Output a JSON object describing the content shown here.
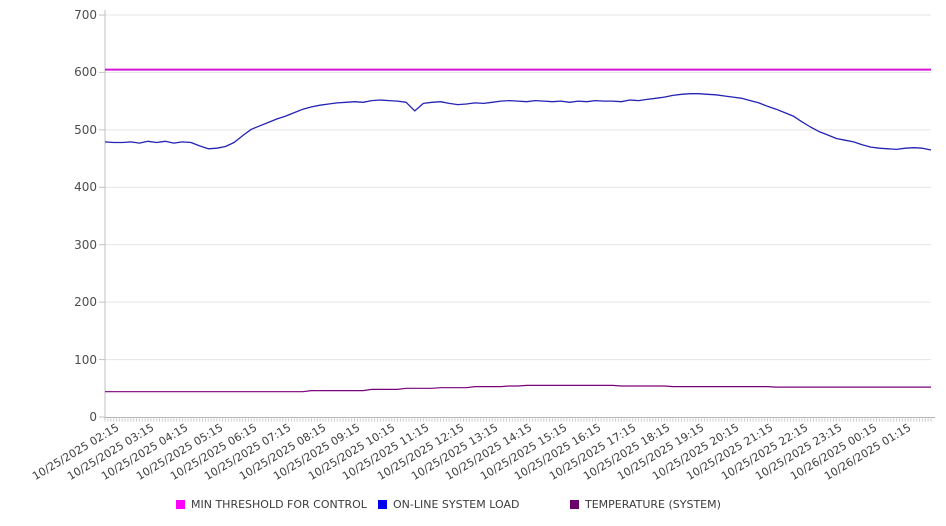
{
  "chart_data": {
    "type": "line",
    "title": "",
    "xlabel": "",
    "ylabel": "",
    "ylim": [
      0,
      700
    ],
    "yticks": [
      0,
      100,
      200,
      300,
      400,
      500,
      600,
      700
    ],
    "grid": "horizontal",
    "legend_position": "bottom",
    "x_tick_labels": [
      "10/25/2025 02:15",
      "10/25/2025 03:15",
      "10/25/2025 04:15",
      "10/25/2025 05:15",
      "10/25/2025 06:15",
      "10/25/2025 07:15",
      "10/25/2025 08:15",
      "10/25/2025 09:15",
      "10/25/2025 10:15",
      "10/25/2025 11:15",
      "10/25/2025 12:15",
      "10/25/2025 13:15",
      "10/25/2025 14:15",
      "10/25/2025 15:15",
      "10/25/2025 16:15",
      "10/25/2025 17:15",
      "10/25/2025 18:15",
      "10/25/2025 19:15",
      "10/25/2025 20:15",
      "10/25/2025 21:15",
      "10/25/2025 22:15",
      "10/25/2025 23:15",
      "10/26/2025 00:15",
      "10/26/2025 01:15"
    ],
    "sample_interval_minutes": 15,
    "minor_tick_interval_minutes": 5,
    "x_span_hours": 24,
    "series": [
      {
        "name": "MIN THRESHOLD FOR CONTROL",
        "swatch_color": "#ff00ff",
        "line_color": "#d414d4",
        "line_width": 2,
        "constant_value": 605
      },
      {
        "name": "ON-LINE SYSTEM LOAD",
        "swatch_color": "#0000f0",
        "line_color": "#2323b4",
        "line_width": 1.3,
        "values": [
          479,
          478,
          478,
          479,
          477,
          480,
          478,
          480,
          477,
          479,
          478,
          472,
          467,
          468,
          471,
          478,
          490,
          501,
          507,
          513,
          519,
          524,
          530,
          536,
          540,
          543,
          545,
          547,
          548,
          549,
          548,
          551,
          552,
          551,
          550,
          548,
          533,
          546,
          548,
          549,
          546,
          544,
          545,
          547,
          546,
          548,
          550,
          551,
          550,
          549,
          551,
          550,
          549,
          550,
          548,
          550,
          549,
          551,
          550,
          550,
          549,
          552,
          551,
          553,
          555,
          557,
          560,
          562,
          563,
          563,
          562,
          561,
          559,
          557,
          555,
          551,
          547,
          541,
          536,
          530,
          524,
          514,
          505,
          497,
          491,
          485,
          482,
          479,
          474,
          470,
          468,
          467,
          466,
          468,
          469,
          468,
          465
        ]
      },
      {
        "name": "TEMPERATURE (SYSTEM)",
        "swatch_color": "#6b006b",
        "line_color": "#7a007a",
        "line_width": 1.2,
        "values": [
          44,
          44,
          44,
          44,
          44,
          44,
          44,
          44,
          44,
          44,
          44,
          44,
          44,
          44,
          44,
          44,
          44,
          44,
          44,
          44,
          44,
          44,
          44,
          44,
          46,
          46,
          46,
          46,
          46,
          46,
          46,
          48,
          48,
          48,
          48,
          50,
          50,
          50,
          50,
          51,
          51,
          51,
          51,
          53,
          53,
          53,
          53,
          54,
          54,
          55,
          55,
          55,
          55,
          55,
          55,
          55,
          55,
          55,
          55,
          55,
          54,
          54,
          54,
          54,
          54,
          54,
          53,
          53,
          53,
          53,
          53,
          53,
          53,
          53,
          53,
          53,
          53,
          53,
          52,
          52,
          52,
          52,
          52,
          52,
          52,
          52,
          52,
          52,
          52,
          52,
          52,
          52,
          52,
          52,
          52,
          52,
          52
        ]
      }
    ]
  },
  "colors": {
    "gridline": "#e5e5e5",
    "axis_line": "#c2c2c2",
    "bottom_axis_line": "#b5b5b5",
    "minor_tick": "#c8c8c8"
  }
}
